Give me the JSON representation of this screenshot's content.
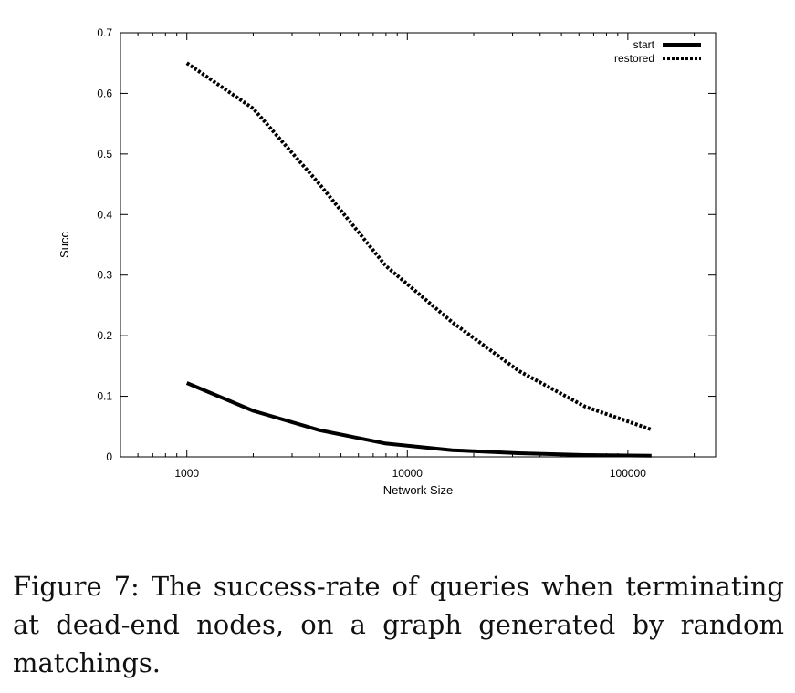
{
  "chart_data": {
    "type": "line",
    "title": "",
    "xlabel": "Network Size",
    "ylabel": "Succ",
    "x_scale": "log",
    "xlim": [
      500,
      250000
    ],
    "ylim": [
      0,
      0.7
    ],
    "x_ticks": [
      1000,
      10000,
      100000
    ],
    "x_tick_labels": [
      "1000",
      "10000",
      "100000"
    ],
    "y_ticks": [
      0,
      0.1,
      0.2,
      0.3,
      0.4,
      0.5,
      0.6,
      0.7
    ],
    "y_tick_labels": [
      "0",
      "0.1",
      "0.2",
      "0.3",
      "0.4",
      "0.5",
      "0.6",
      "0.7"
    ],
    "grid": false,
    "legend_position": "top-right",
    "x": [
      1000,
      2000,
      4000,
      8000,
      16000,
      32000,
      64000,
      128000
    ],
    "series": [
      {
        "name": "start",
        "style": "solid",
        "values": [
          0.122,
          0.076,
          0.044,
          0.022,
          0.011,
          0.006,
          0.003,
          0.002
        ]
      },
      {
        "name": "restored",
        "style": "dotted",
        "values": [
          0.65,
          0.575,
          0.45,
          0.315,
          0.222,
          0.142,
          0.083,
          0.045
        ]
      }
    ]
  },
  "caption": {
    "text": "Figure 7: The success-rate of queries when terminating at dead-end nodes, on a graph generated by random matchings."
  }
}
